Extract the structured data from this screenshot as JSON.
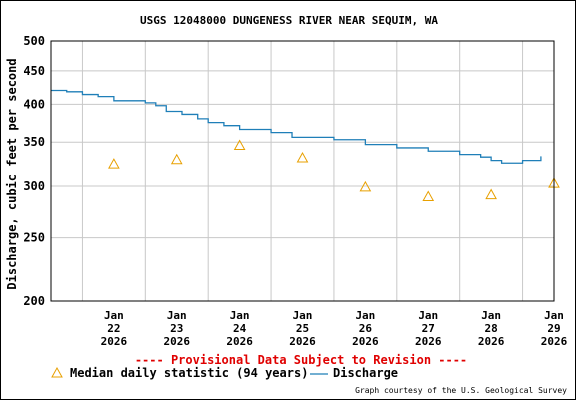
{
  "chart_data": {
    "type": "line",
    "title": "USGS 12048000 DUNGENESS RIVER NEAR SEQUIM, WA",
    "ylabel": "Discharge, cubic feet per second",
    "xlabel": "",
    "y_scale": "log",
    "ylim": [
      200,
      500
    ],
    "y_ticks": [
      "500",
      "450",
      "400",
      "350",
      "300",
      "250",
      "200"
    ],
    "x_ticks": [
      {
        "month": "Jan",
        "day": "22",
        "year": "2026"
      },
      {
        "month": "Jan",
        "day": "23",
        "year": "2026"
      },
      {
        "month": "Jan",
        "day": "24",
        "year": "2026"
      },
      {
        "month": "Jan",
        "day": "25",
        "year": "2026"
      },
      {
        "month": "Jan",
        "day": "26",
        "year": "2026"
      },
      {
        "month": "Jan",
        "day": "27",
        "year": "2026"
      },
      {
        "month": "Jan",
        "day": "28",
        "year": "2026"
      },
      {
        "month": "Jan",
        "day": "29",
        "year": "2026"
      }
    ],
    "xlim": [
      "2026-01-21T12:00",
      "2026-01-29T12:00"
    ],
    "grid": true,
    "legend_position": "bottom",
    "series": [
      {
        "name": "Median daily statistic (94 years)",
        "type": "scatter",
        "marker": "triangle",
        "color": "#e8a000",
        "x": [
          "2026-01-22",
          "2026-01-23",
          "2026-01-24",
          "2026-01-25",
          "2026-01-26",
          "2026-01-27",
          "2026-01-28",
          "2026-01-29"
        ],
        "values": [
          324,
          329,
          346,
          331,
          299,
          289,
          291,
          303
        ]
      },
      {
        "name": "Discharge",
        "type": "step",
        "color": "#1f7fb8",
        "x": [
          "2026-01-21T12:00",
          "2026-01-21T18:00",
          "2026-01-22T00:00",
          "2026-01-22T06:00",
          "2026-01-22T12:00",
          "2026-01-22T18:00",
          "2026-01-23T00:00",
          "2026-01-23T04:00",
          "2026-01-23T08:00",
          "2026-01-23T14:00",
          "2026-01-23T20:00",
          "2026-01-24T00:00",
          "2026-01-24T06:00",
          "2026-01-24T12:00",
          "2026-01-25T00:00",
          "2026-01-25T08:00",
          "2026-01-26T00:00",
          "2026-01-26T12:00",
          "2026-01-27T00:00",
          "2026-01-27T12:00",
          "2026-01-28T00:00",
          "2026-01-28T08:00",
          "2026-01-28T12:00",
          "2026-01-28T16:00",
          "2026-01-29T00:00",
          "2026-01-29T06:00",
          "2026-01-29T07:00"
        ],
        "values": [
          420,
          418,
          414,
          411,
          405,
          405,
          402,
          398,
          390,
          386,
          380,
          375,
          371,
          366,
          362,
          356,
          353,
          347,
          343,
          339,
          335,
          332,
          328,
          325,
          328,
          328,
          333
        ]
      }
    ]
  },
  "footer": {
    "provisional": "---- Provisional Data Subject to Revision ----",
    "credit": "Graph courtesy of the U.S. Geological Survey"
  },
  "colors": {
    "provisional": "#e00000",
    "grid": "#c8c8c8",
    "discharge": "#1f7fb8",
    "median": "#e8a000"
  }
}
